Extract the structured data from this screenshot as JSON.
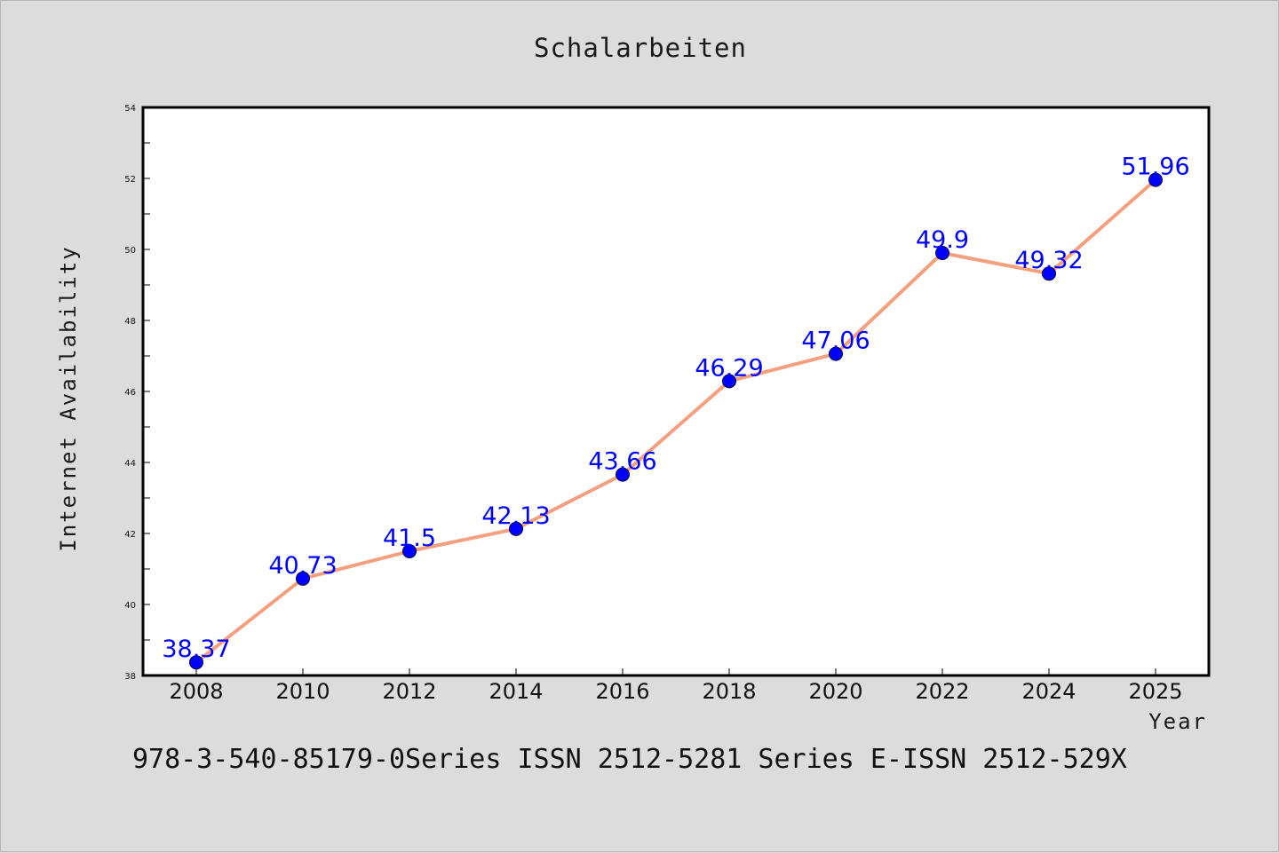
{
  "chart_data": {
    "type": "line",
    "title": "Schalarbeiten",
    "xlabel": "Year",
    "ylabel": "Internet Availability",
    "categories": [
      "2008",
      "2010",
      "2012",
      "2014",
      "2016",
      "2018",
      "2020",
      "2022",
      "2024",
      "2025"
    ],
    "series": [
      {
        "values": [
          38.37,
          40.73,
          41.5,
          42.13,
          43.66,
          46.29,
          47.06,
          49.9,
          49.32,
          51.96
        ],
        "labels": [
          "38.37",
          "40.73",
          "41.5",
          "42.13",
          "43.66",
          "46.29",
          "47.06",
          "49.9",
          "49.32",
          "51.96"
        ]
      }
    ],
    "ylim": [
      38,
      54
    ],
    "yticks": [
      38,
      40,
      42,
      44,
      46,
      48,
      50,
      52,
      54
    ],
    "grid": false,
    "legend": "none",
    "colors": {
      "line": "#f4a07e",
      "marker": "#0000ff",
      "data_label": "#0000ff",
      "axes": "#000000",
      "background": "#dcdcdc",
      "plot_background": "#ffffff"
    }
  },
  "footer": {
    "text": "978-3-540-85179-0Series ISSN 2512-5281 Series E-ISSN 2512-529X"
  }
}
